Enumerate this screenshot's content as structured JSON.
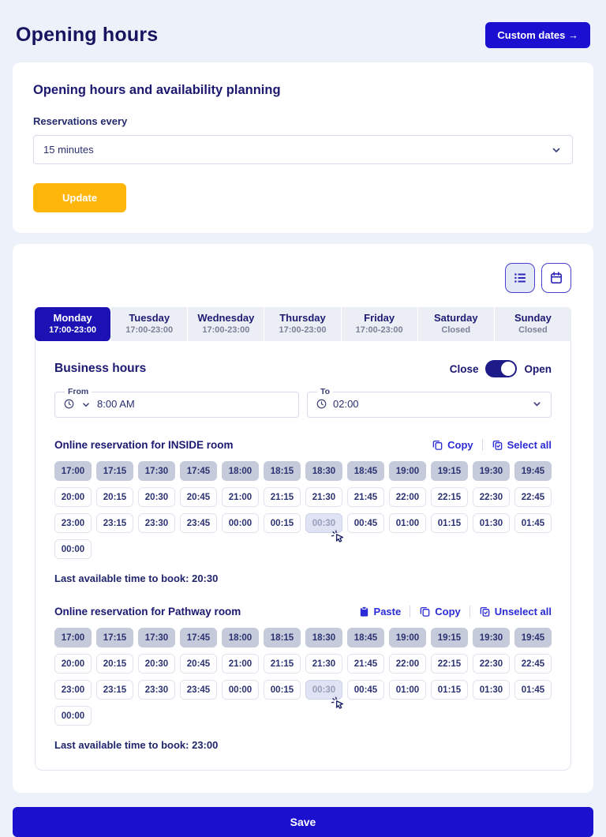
{
  "page": {
    "title": "Opening hours"
  },
  "header": {
    "custom_dates_button": "Custom dates →"
  },
  "colors": {
    "accent_blue": "#1b10d0",
    "active_tab_blue": "#1c12b4",
    "update_yellow": "#ffb60a",
    "selected_chip": "#c5cbda",
    "link_blue": "#2a2ad6",
    "page_background": "#edf1fa"
  },
  "planning_card": {
    "title": "Opening hours and availability planning",
    "reservations_label": "Reservations every",
    "interval_value": "15 minutes",
    "update_button": "Update"
  },
  "schedule_card": {
    "view_buttons": [
      {
        "name": "list-view",
        "icon": "list-icon",
        "active": true
      },
      {
        "name": "calendar-view",
        "icon": "calendar-icon",
        "active": false
      }
    ],
    "tabs": [
      {
        "day": "Monday",
        "hours": "17:00-23:00",
        "active": true
      },
      {
        "day": "Tuesday",
        "hours": "17:00-23:00",
        "active": false
      },
      {
        "day": "Wednesday",
        "hours": "17:00-23:00",
        "active": false
      },
      {
        "day": "Thursday",
        "hours": "17:00-23:00",
        "active": false
      },
      {
        "day": "Friday",
        "hours": "17:00-23:00",
        "active": false
      },
      {
        "day": "Saturday",
        "hours": "Closed",
        "active": false
      },
      {
        "day": "Sunday",
        "hours": "Closed",
        "active": false
      }
    ],
    "business_hours": {
      "title": "Business hours",
      "close_label": "Close",
      "open_label": "Open",
      "toggle_state": "open",
      "from": {
        "legend": "From",
        "value": "8:00 AM"
      },
      "to": {
        "legend": "To",
        "value": "02:00"
      }
    },
    "rooms": [
      {
        "title": "Online reservation for INSIDE room",
        "actions": [
          {
            "label": "Copy",
            "icon": "copy-icon"
          },
          {
            "label": "Select all",
            "icon": "select-all-icon"
          }
        ],
        "last_available": "Last available time to book: 20:30",
        "slots": [
          {
            "t": "17:00",
            "s": "selected"
          },
          {
            "t": "17:15",
            "s": "selected"
          },
          {
            "t": "17:30",
            "s": "selected"
          },
          {
            "t": "17:45",
            "s": "selected"
          },
          {
            "t": "18:00",
            "s": "selected"
          },
          {
            "t": "18:15",
            "s": "selected"
          },
          {
            "t": "18:30",
            "s": "selected"
          },
          {
            "t": "18:45",
            "s": "selected"
          },
          {
            "t": "19:00",
            "s": "selected"
          },
          {
            "t": "19:15",
            "s": "selected"
          },
          {
            "t": "19:30",
            "s": "selected"
          },
          {
            "t": "19:45",
            "s": "selected"
          },
          {
            "t": "20:00",
            "s": "default"
          },
          {
            "t": "20:15",
            "s": "default"
          },
          {
            "t": "20:30",
            "s": "default"
          },
          {
            "t": "20:45",
            "s": "default"
          },
          {
            "t": "21:00",
            "s": "default"
          },
          {
            "t": "21:15",
            "s": "default"
          },
          {
            "t": "21:30",
            "s": "default"
          },
          {
            "t": "21:45",
            "s": "default"
          },
          {
            "t": "22:00",
            "s": "default"
          },
          {
            "t": "22:15",
            "s": "default"
          },
          {
            "t": "22:30",
            "s": "default"
          },
          {
            "t": "22:45",
            "s": "default"
          },
          {
            "t": "23:00",
            "s": "default"
          },
          {
            "t": "23:15",
            "s": "default"
          },
          {
            "t": "23:30",
            "s": "default"
          },
          {
            "t": "23:45",
            "s": "default"
          },
          {
            "t": "00:00",
            "s": "default"
          },
          {
            "t": "00:15",
            "s": "default"
          },
          {
            "t": "00:30",
            "s": "hover"
          },
          {
            "t": "00:45",
            "s": "default"
          },
          {
            "t": "01:00",
            "s": "default"
          },
          {
            "t": "01:15",
            "s": "default"
          },
          {
            "t": "01:30",
            "s": "default"
          },
          {
            "t": "01:45",
            "s": "default"
          },
          {
            "t": "00:00",
            "s": "default"
          }
        ]
      },
      {
        "title": "Online reservation for Pathway room",
        "actions": [
          {
            "label": "Paste",
            "icon": "paste-icon"
          },
          {
            "label": "Copy",
            "icon": "copy-icon"
          },
          {
            "label": "Unselect all",
            "icon": "select-all-icon"
          }
        ],
        "last_available": "Last available time to book: 23:00",
        "slots": [
          {
            "t": "17:00",
            "s": "selected"
          },
          {
            "t": "17:15",
            "s": "selected"
          },
          {
            "t": "17:30",
            "s": "selected"
          },
          {
            "t": "17:45",
            "s": "selected"
          },
          {
            "t": "18:00",
            "s": "selected"
          },
          {
            "t": "18:15",
            "s": "selected"
          },
          {
            "t": "18:30",
            "s": "selected"
          },
          {
            "t": "18:45",
            "s": "selected"
          },
          {
            "t": "19:00",
            "s": "selected"
          },
          {
            "t": "19:15",
            "s": "selected"
          },
          {
            "t": "19:30",
            "s": "selected"
          },
          {
            "t": "19:45",
            "s": "selected"
          },
          {
            "t": "20:00",
            "s": "default"
          },
          {
            "t": "20:15",
            "s": "default"
          },
          {
            "t": "20:30",
            "s": "default"
          },
          {
            "t": "20:45",
            "s": "default"
          },
          {
            "t": "21:00",
            "s": "default"
          },
          {
            "t": "21:15",
            "s": "default"
          },
          {
            "t": "21:30",
            "s": "default"
          },
          {
            "t": "21:45",
            "s": "default"
          },
          {
            "t": "22:00",
            "s": "default"
          },
          {
            "t": "22:15",
            "s": "default"
          },
          {
            "t": "22:30",
            "s": "default"
          },
          {
            "t": "22:45",
            "s": "default"
          },
          {
            "t": "23:00",
            "s": "default"
          },
          {
            "t": "23:15",
            "s": "default"
          },
          {
            "t": "23:30",
            "s": "default"
          },
          {
            "t": "23:45",
            "s": "default"
          },
          {
            "t": "00:00",
            "s": "default"
          },
          {
            "t": "00:15",
            "s": "default"
          },
          {
            "t": "00:30",
            "s": "hover"
          },
          {
            "t": "00:45",
            "s": "default"
          },
          {
            "t": "01:00",
            "s": "default"
          },
          {
            "t": "01:15",
            "s": "default"
          },
          {
            "t": "01:30",
            "s": "default"
          },
          {
            "t": "01:45",
            "s": "default"
          },
          {
            "t": "00:00",
            "s": "default"
          }
        ]
      }
    ]
  },
  "save_button": {
    "label": "Save"
  }
}
